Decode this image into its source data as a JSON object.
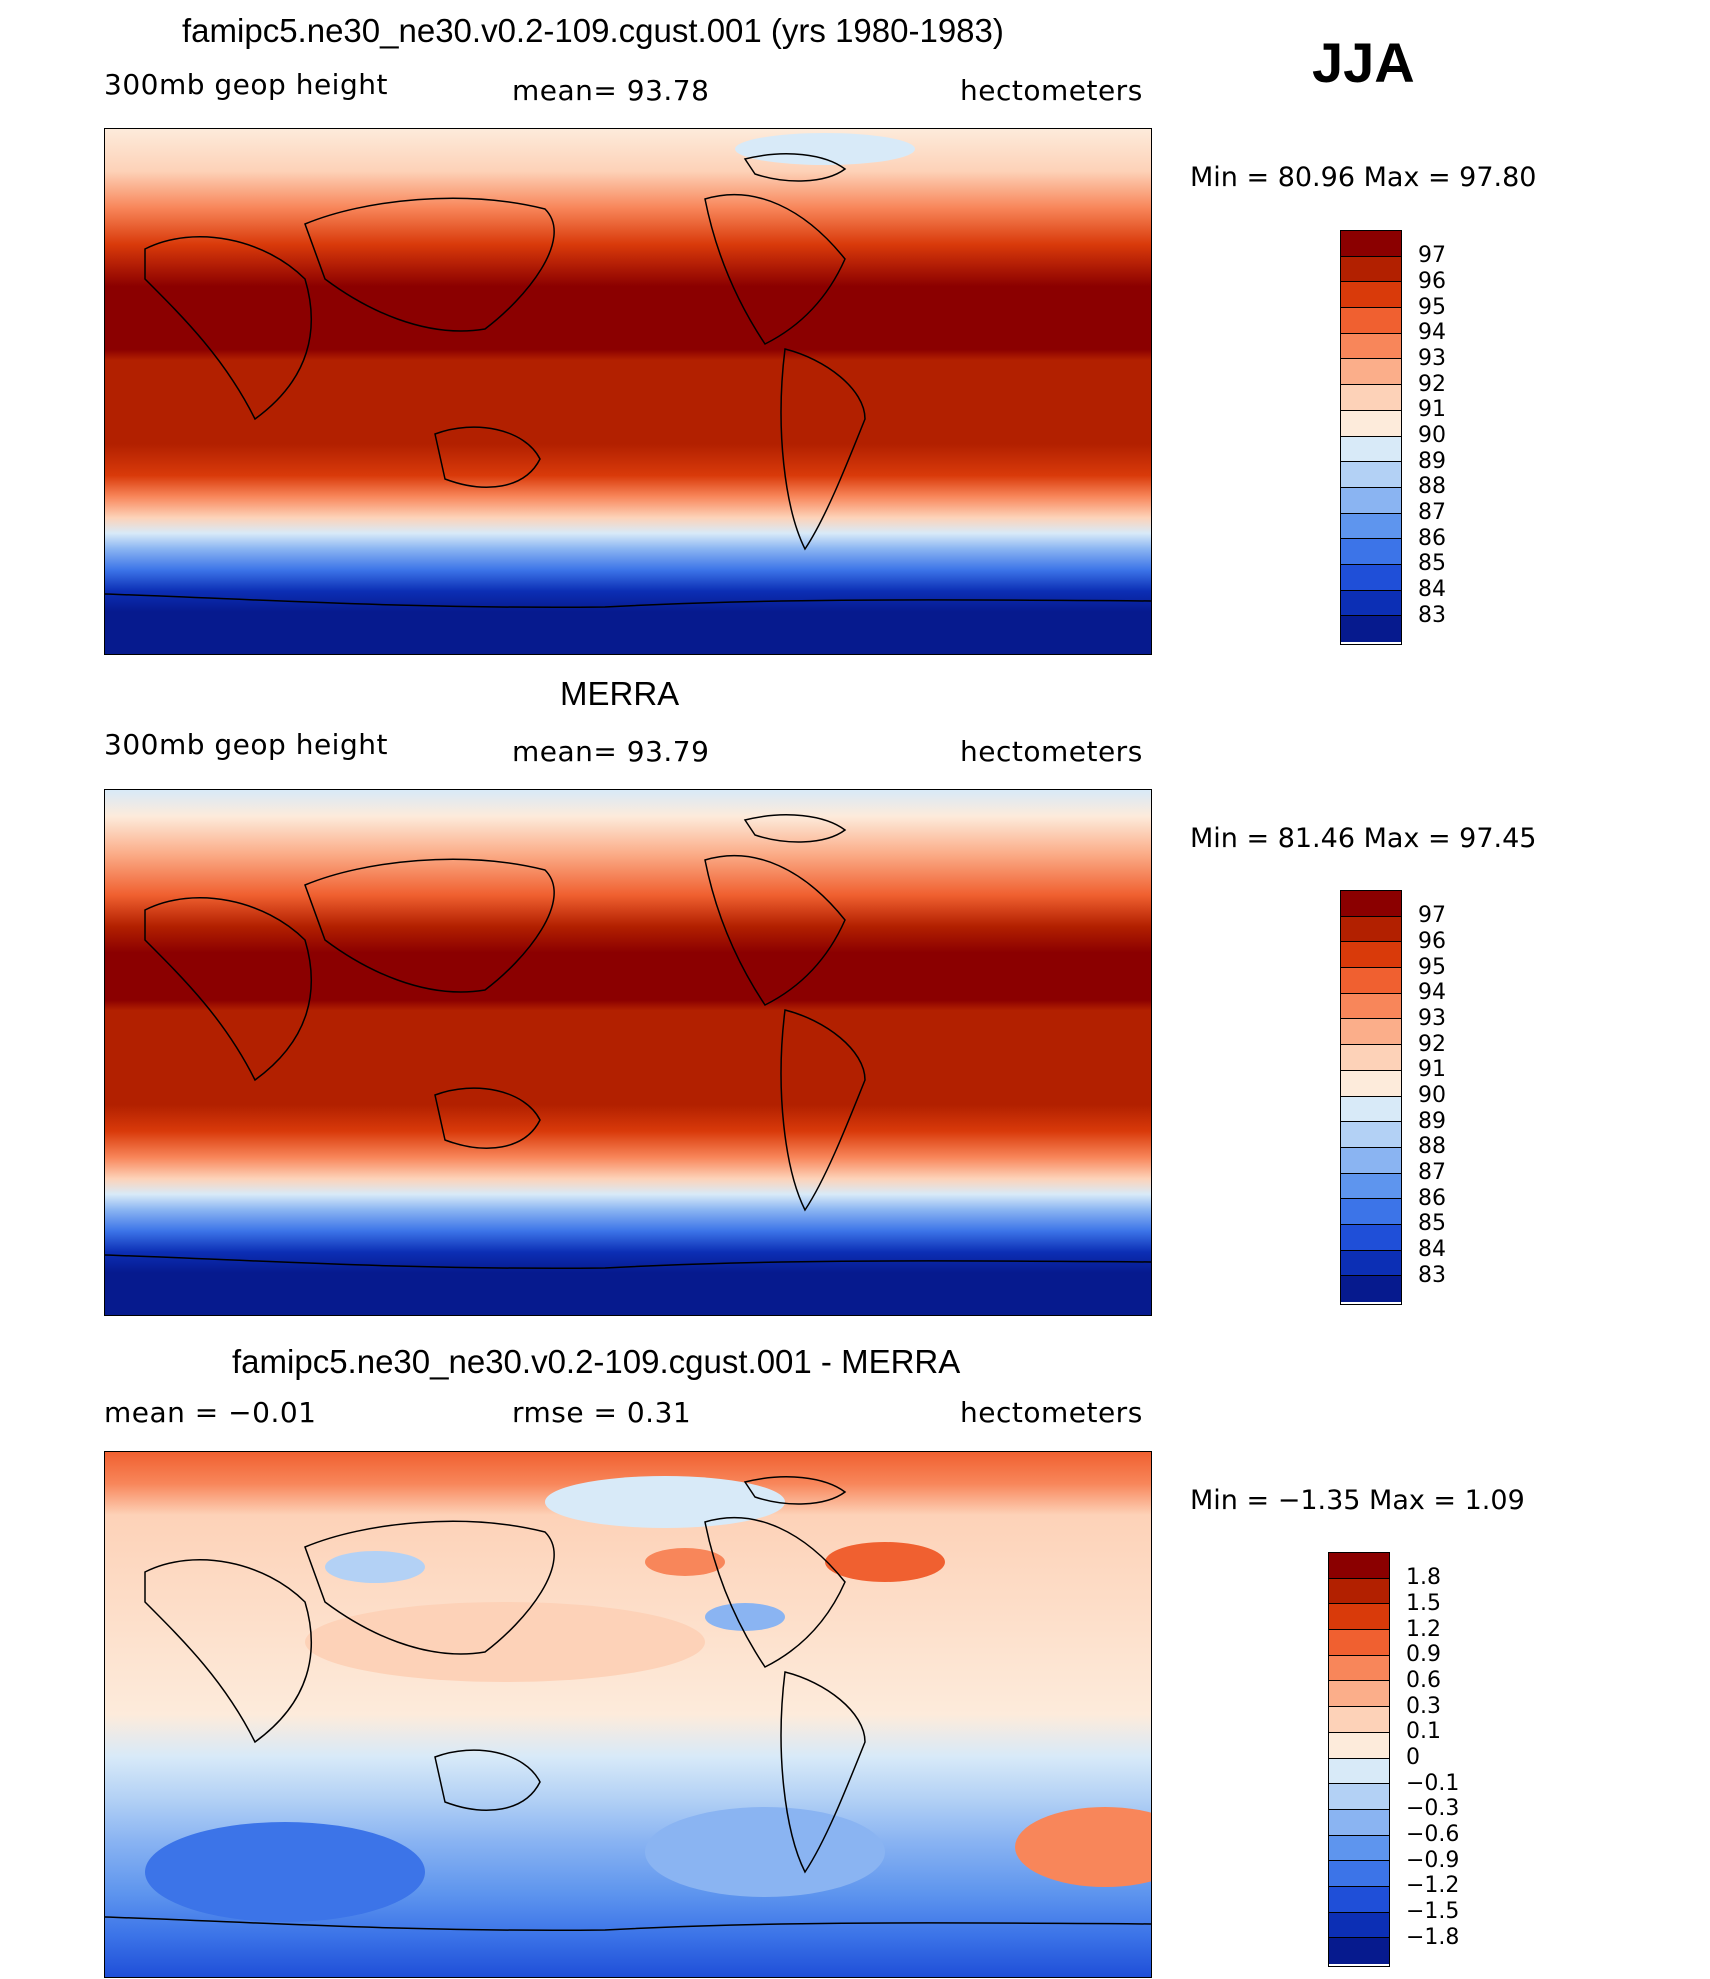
{
  "season": "JJA",
  "panels": [
    {
      "id": "model",
      "title": "famipc5.ne30_ne30.v0.2-109.cgust.001 (yrs 1980-1983)",
      "left_label": "300mb  geop  height",
      "center_label": "mean=   93.78",
      "right_label": "hectometers",
      "minmax": "Min  =   80.96  Max  =   97.80",
      "legend": {
        "labels": [
          "97",
          "96",
          "95",
          "94",
          "93",
          "92",
          "91",
          "90",
          "89",
          "88",
          "87",
          "86",
          "85",
          "84",
          "83"
        ],
        "colors": [
          "#8B0000",
          "#B22000",
          "#D93A0A",
          "#F06030",
          "#F8865A",
          "#FBAE8A",
          "#FDD2B8",
          "#FDEBDB",
          "#D8EAF8",
          "#B3D1F5",
          "#8AB4F2",
          "#5E95EE",
          "#3C74E8",
          "#1F4FD8",
          "#0C2FB5",
          "#061A8E"
        ]
      },
      "chart_data": {
        "type": "heatmap",
        "field": "300mb geopotential height",
        "units": "hectometers",
        "mean": 93.78,
        "min": 80.96,
        "max": 97.8,
        "contour_levels": [
          83,
          84,
          85,
          86,
          87,
          88,
          89,
          90,
          91,
          92,
          93,
          94,
          95,
          96,
          97
        ]
      }
    },
    {
      "id": "obs",
      "title": "MERRA",
      "left_label": "300mb  geop  height",
      "center_label": "mean=   93.79",
      "right_label": "hectometers",
      "minmax": "Min  =   81.46  Max  =   97.45",
      "legend": {
        "labels": [
          "97",
          "96",
          "95",
          "94",
          "93",
          "92",
          "91",
          "90",
          "89",
          "88",
          "87",
          "86",
          "85",
          "84",
          "83"
        ],
        "colors": [
          "#8B0000",
          "#B22000",
          "#D93A0A",
          "#F06030",
          "#F8865A",
          "#FBAE8A",
          "#FDD2B8",
          "#FDEBDB",
          "#D8EAF8",
          "#B3D1F5",
          "#8AB4F2",
          "#5E95EE",
          "#3C74E8",
          "#1F4FD8",
          "#0C2FB5",
          "#061A8E"
        ]
      },
      "chart_data": {
        "type": "heatmap",
        "field": "300mb geopotential height",
        "units": "hectometers",
        "mean": 93.79,
        "min": 81.46,
        "max": 97.45,
        "contour_levels": [
          83,
          84,
          85,
          86,
          87,
          88,
          89,
          90,
          91,
          92,
          93,
          94,
          95,
          96,
          97
        ]
      }
    },
    {
      "id": "diff",
      "title": "famipc5.ne30_ne30.v0.2-109.cgust.001 - MERRA",
      "left_label": "mean  =    −0.01",
      "center_label": "rmse  =     0.31",
      "right_label": "hectometers",
      "minmax": "Min  =   −1.35  Max  =     1.09",
      "legend": {
        "labels": [
          "1.8",
          "1.5",
          "1.2",
          "0.9",
          "0.6",
          "0.3",
          "0.1",
          "0",
          "−0.1",
          "−0.3",
          "−0.6",
          "−0.9",
          "−1.2",
          "−1.5",
          "−1.8"
        ],
        "colors": [
          "#8B0000",
          "#B22000",
          "#D93A0A",
          "#F06030",
          "#F8865A",
          "#FBAE8A",
          "#FDD2B8",
          "#FDEBDB",
          "#D8EAF8",
          "#B3D1F5",
          "#8AB4F2",
          "#5E95EE",
          "#3C74E8",
          "#1F4FD8",
          "#0C2FB5",
          "#061A8E"
        ]
      },
      "chart_data": {
        "type": "heatmap",
        "field": "difference",
        "units": "hectometers",
        "mean": -0.01,
        "rmse": 0.31,
        "min": -1.35,
        "max": 1.09,
        "contour_levels": [
          -1.8,
          -1.5,
          -1.2,
          -0.9,
          -0.6,
          -0.3,
          -0.1,
          0,
          0.1,
          0.3,
          0.6,
          0.9,
          1.2,
          1.5,
          1.8
        ]
      }
    }
  ]
}
